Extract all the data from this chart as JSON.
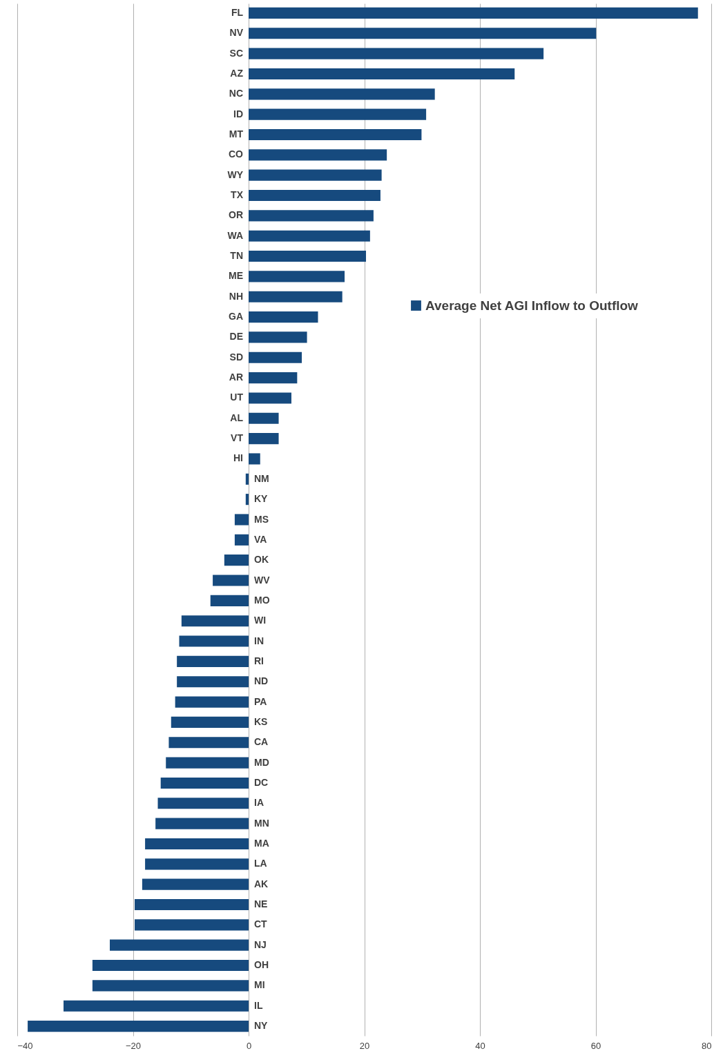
{
  "chart_data": {
    "type": "bar",
    "orientation": "horizontal",
    "categories": [
      "FL",
      "NV",
      "SC",
      "AZ",
      "NC",
      "ID",
      "MT",
      "CO",
      "WY",
      "TX",
      "OR",
      "WA",
      "TN",
      "ME",
      "NH",
      "GA",
      "DE",
      "SD",
      "AR",
      "UT",
      "AL",
      "VT",
      "HI",
      "NM",
      "KY",
      "MS",
      "VA",
      "OK",
      "WV",
      "MO",
      "WI",
      "IN",
      "RI",
      "ND",
      "PA",
      "KS",
      "CA",
      "MD",
      "DC",
      "IA",
      "MN",
      "MA",
      "LA",
      "AK",
      "NE",
      "CT",
      "NJ",
      "OH",
      "MI",
      "IL",
      "NY"
    ],
    "series": [
      {
        "name": "Average Net AGI Inflow to Outflow",
        "color": "#164a7e",
        "values": [
          77.7,
          60.1,
          51,
          46,
          32.2,
          30.7,
          29.9,
          23.9,
          23,
          22.8,
          21.6,
          21,
          20.3,
          16.6,
          16.2,
          12,
          10.1,
          9.2,
          8.4,
          7.4,
          5.2,
          5.2,
          2,
          -0.5,
          -0.5,
          -2.4,
          -2.4,
          -4.2,
          -6.2,
          -6.6,
          -11.6,
          -12,
          -12.4,
          -12.4,
          -12.7,
          -13.4,
          -13.8,
          -14.3,
          -15.2,
          -15.7,
          -16.1,
          -17.9,
          -17.9,
          -18.4,
          -19.7,
          -19.7,
          -24,
          -27,
          -27,
          -32,
          -38.2
        ]
      }
    ],
    "xlim": [
      -40,
      80
    ],
    "xticks": [
      -40,
      -20,
      0,
      20,
      40,
      60,
      80
    ],
    "grid": "x",
    "legend": "top right"
  }
}
